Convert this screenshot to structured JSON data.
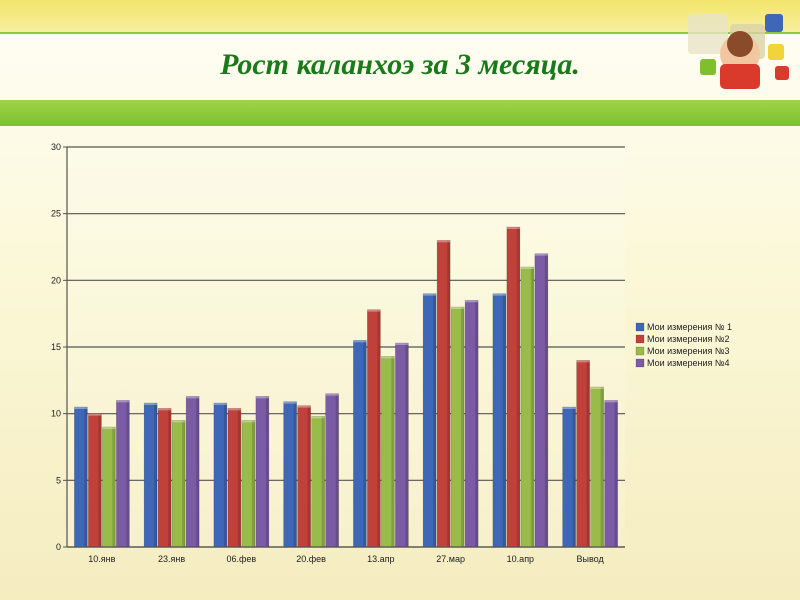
{
  "slide": {
    "title": "Рост каланхоэ за 3 месяца."
  },
  "colors": {
    "series": [
      "#3f67b8",
      "#c0403a",
      "#98bb4a",
      "#7b5aa6"
    ],
    "title": "#1a7a1a",
    "band_green": "#8fc83a"
  },
  "chart_data": {
    "type": "bar",
    "categories": [
      "10.янв",
      "23.янв",
      "06.фев",
      "20.фев",
      "13.апр",
      "27.мар",
      "10.апр",
      "Вывод"
    ],
    "series": [
      {
        "name": "Мои измерения № 1",
        "values": [
          10.5,
          10.8,
          10.8,
          10.9,
          15.5,
          19.0,
          19.0,
          10.5
        ]
      },
      {
        "name": "Мои измерения №2",
        "values": [
          10.0,
          10.4,
          10.4,
          10.6,
          17.8,
          23.0,
          24.0,
          14.0
        ]
      },
      {
        "name": "Мои измерения №3",
        "values": [
          9.0,
          9.5,
          9.5,
          9.8,
          14.3,
          18.0,
          21.0,
          12.0
        ]
      },
      {
        "name": "Мои измерения №4",
        "values": [
          11.0,
          11.3,
          11.3,
          11.5,
          15.3,
          18.5,
          22.0,
          11.0
        ]
      }
    ],
    "ylim": [
      0,
      30
    ],
    "yticks": [
      0,
      5,
      10,
      15,
      20,
      25,
      30
    ],
    "grid": true,
    "legend_position": "right"
  }
}
